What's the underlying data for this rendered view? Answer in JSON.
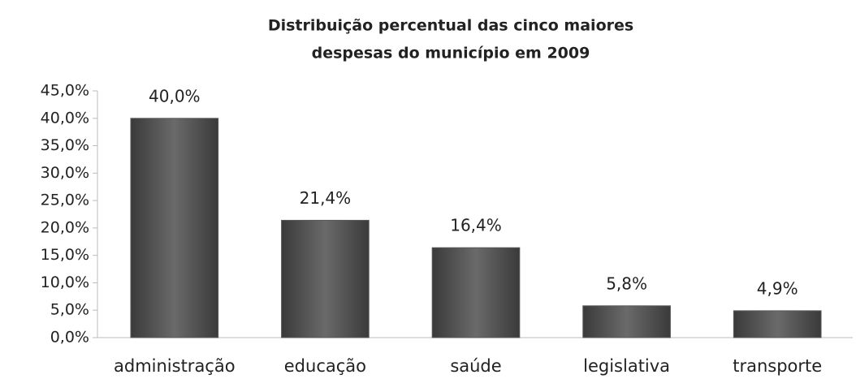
{
  "chart_data": {
    "type": "bar",
    "title": [
      "Distribuição percentual das cinco maiores",
      "despesas do município em 2009"
    ],
    "categories": [
      "administração",
      "educação",
      "saúde",
      "legislativa",
      "transporte"
    ],
    "values": [
      40.0,
      21.4,
      16.4,
      5.8,
      4.9
    ],
    "value_labels": [
      "40,0%",
      "21,4%",
      "16,4%",
      "5,8%",
      "4,9%"
    ],
    "color": "#5a5a5a",
    "ylim": [
      0,
      45
    ],
    "yticks": [
      {
        "value": 0,
        "label": "0,0%"
      },
      {
        "value": 5,
        "label": "5,0%"
      },
      {
        "value": 10,
        "label": "10,0%"
      },
      {
        "value": 15,
        "label": "15,0%"
      },
      {
        "value": 20,
        "label": "20,0%"
      },
      {
        "value": 25,
        "label": "25,0%"
      },
      {
        "value": 30,
        "label": "30,0%"
      },
      {
        "value": 35,
        "label": "35,0%"
      },
      {
        "value": 40,
        "label": "40,0%"
      },
      {
        "value": 45,
        "label": "45,0%"
      }
    ],
    "grid": false
  }
}
